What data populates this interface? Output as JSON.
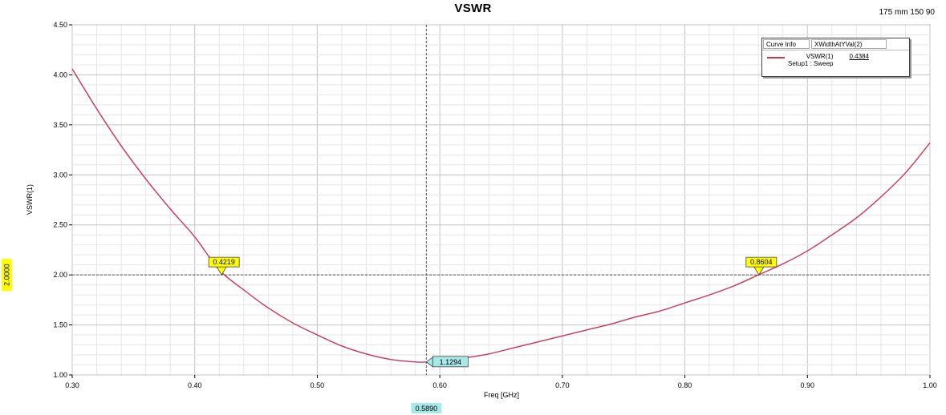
{
  "header": {
    "partial_top_text": "",
    "title": "VSWR",
    "subtitle": "175 mm 150 90"
  },
  "legend": {
    "col1": "Curve Info",
    "col2": "XWidthAtYVal(2)",
    "series_name": "VSWR(1)",
    "series_setup": "Setup1 : Sweep",
    "series_value": "0.4384"
  },
  "markers": {
    "left": "0.4219",
    "right": "0.8604",
    "min": "1.1294",
    "x_readout": "0.5890",
    "y_readout": "2.0000"
  },
  "colors": {
    "curve": "#cc3355",
    "marker_yellow": "#ffff00",
    "marker_cyan": "#a8e8e8",
    "grid": "#d6d6d6"
  },
  "chart_data": {
    "type": "line",
    "title": "VSWR",
    "xlabel": "Freq [GHz]",
    "ylabel": "VSWR(1)",
    "xlim": [
      0.3,
      1.0
    ],
    "ylim": [
      1.0,
      4.5
    ],
    "x_ticks": [
      "0.30",
      "0.40",
      "0.50",
      "0.60",
      "0.70",
      "0.80",
      "0.90",
      "1.00"
    ],
    "y_ticks": [
      "1.00",
      "1.50",
      "2.00",
      "2.50",
      "3.00",
      "3.50",
      "4.00",
      "4.50"
    ],
    "grid": true,
    "legend_position": "top-right",
    "reference_lines": {
      "y": 2.0,
      "x": 0.589
    },
    "series": [
      {
        "name": "VSWR(1)",
        "x": [
          0.3,
          0.32,
          0.34,
          0.36,
          0.38,
          0.4,
          0.42,
          0.44,
          0.46,
          0.48,
          0.5,
          0.52,
          0.54,
          0.56,
          0.58,
          0.589,
          0.6,
          0.62,
          0.64,
          0.66,
          0.68,
          0.7,
          0.72,
          0.74,
          0.76,
          0.78,
          0.8,
          0.82,
          0.84,
          0.86,
          0.88,
          0.9,
          0.92,
          0.94,
          0.96,
          0.98,
          1.0
        ],
        "y": [
          4.06,
          3.66,
          3.29,
          2.96,
          2.66,
          2.38,
          2.05,
          1.85,
          1.67,
          1.52,
          1.4,
          1.29,
          1.21,
          1.155,
          1.13,
          1.129,
          1.14,
          1.17,
          1.21,
          1.27,
          1.33,
          1.39,
          1.45,
          1.51,
          1.58,
          1.64,
          1.72,
          1.8,
          1.89,
          2.0,
          2.11,
          2.24,
          2.4,
          2.57,
          2.78,
          3.02,
          3.32
        ]
      }
    ]
  }
}
